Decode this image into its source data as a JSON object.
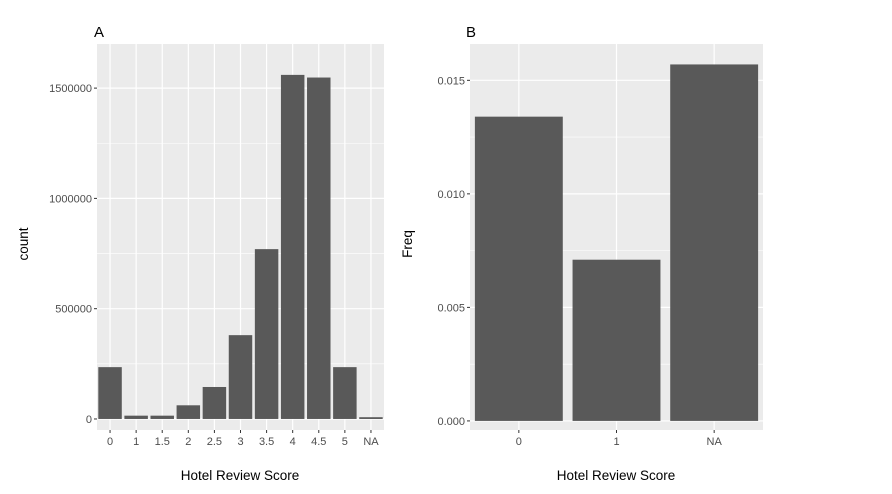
{
  "chart_data": [
    {
      "type": "bar",
      "panel_label": "A",
      "xlabel": "Hotel Review Score",
      "ylabel": "count",
      "categories": [
        "0",
        "1",
        "1.5",
        "2",
        "2.5",
        "3",
        "3.5",
        "4",
        "4.5",
        "5",
        "NA"
      ],
      "values": [
        235000,
        15000,
        15000,
        62000,
        145000,
        380000,
        770000,
        1560000,
        1548000,
        235000,
        8000
      ],
      "ylim": [
        -50000,
        1700000
      ],
      "yticks": [
        0,
        500000,
        1000000,
        1500000
      ],
      "ytick_labels": [
        "0",
        "500000",
        "1000000",
        "1500000"
      ],
      "grid": true,
      "bar_color": "#595959",
      "panel_background": "#ebebeb"
    },
    {
      "type": "bar",
      "panel_label": "B",
      "xlabel": "Hotel Review Score",
      "ylabel": "Freq",
      "categories": [
        "0",
        "1",
        "NA"
      ],
      "values": [
        0.0134,
        0.0071,
        0.0157
      ],
      "ylim": [
        -0.0004,
        0.0166
      ],
      "yticks": [
        0,
        0.005,
        0.01,
        0.015
      ],
      "ytick_labels": [
        "0.000",
        "0.005",
        "0.010",
        "0.015"
      ],
      "grid": true,
      "bar_color": "#595959",
      "panel_background": "#ebebeb"
    }
  ]
}
